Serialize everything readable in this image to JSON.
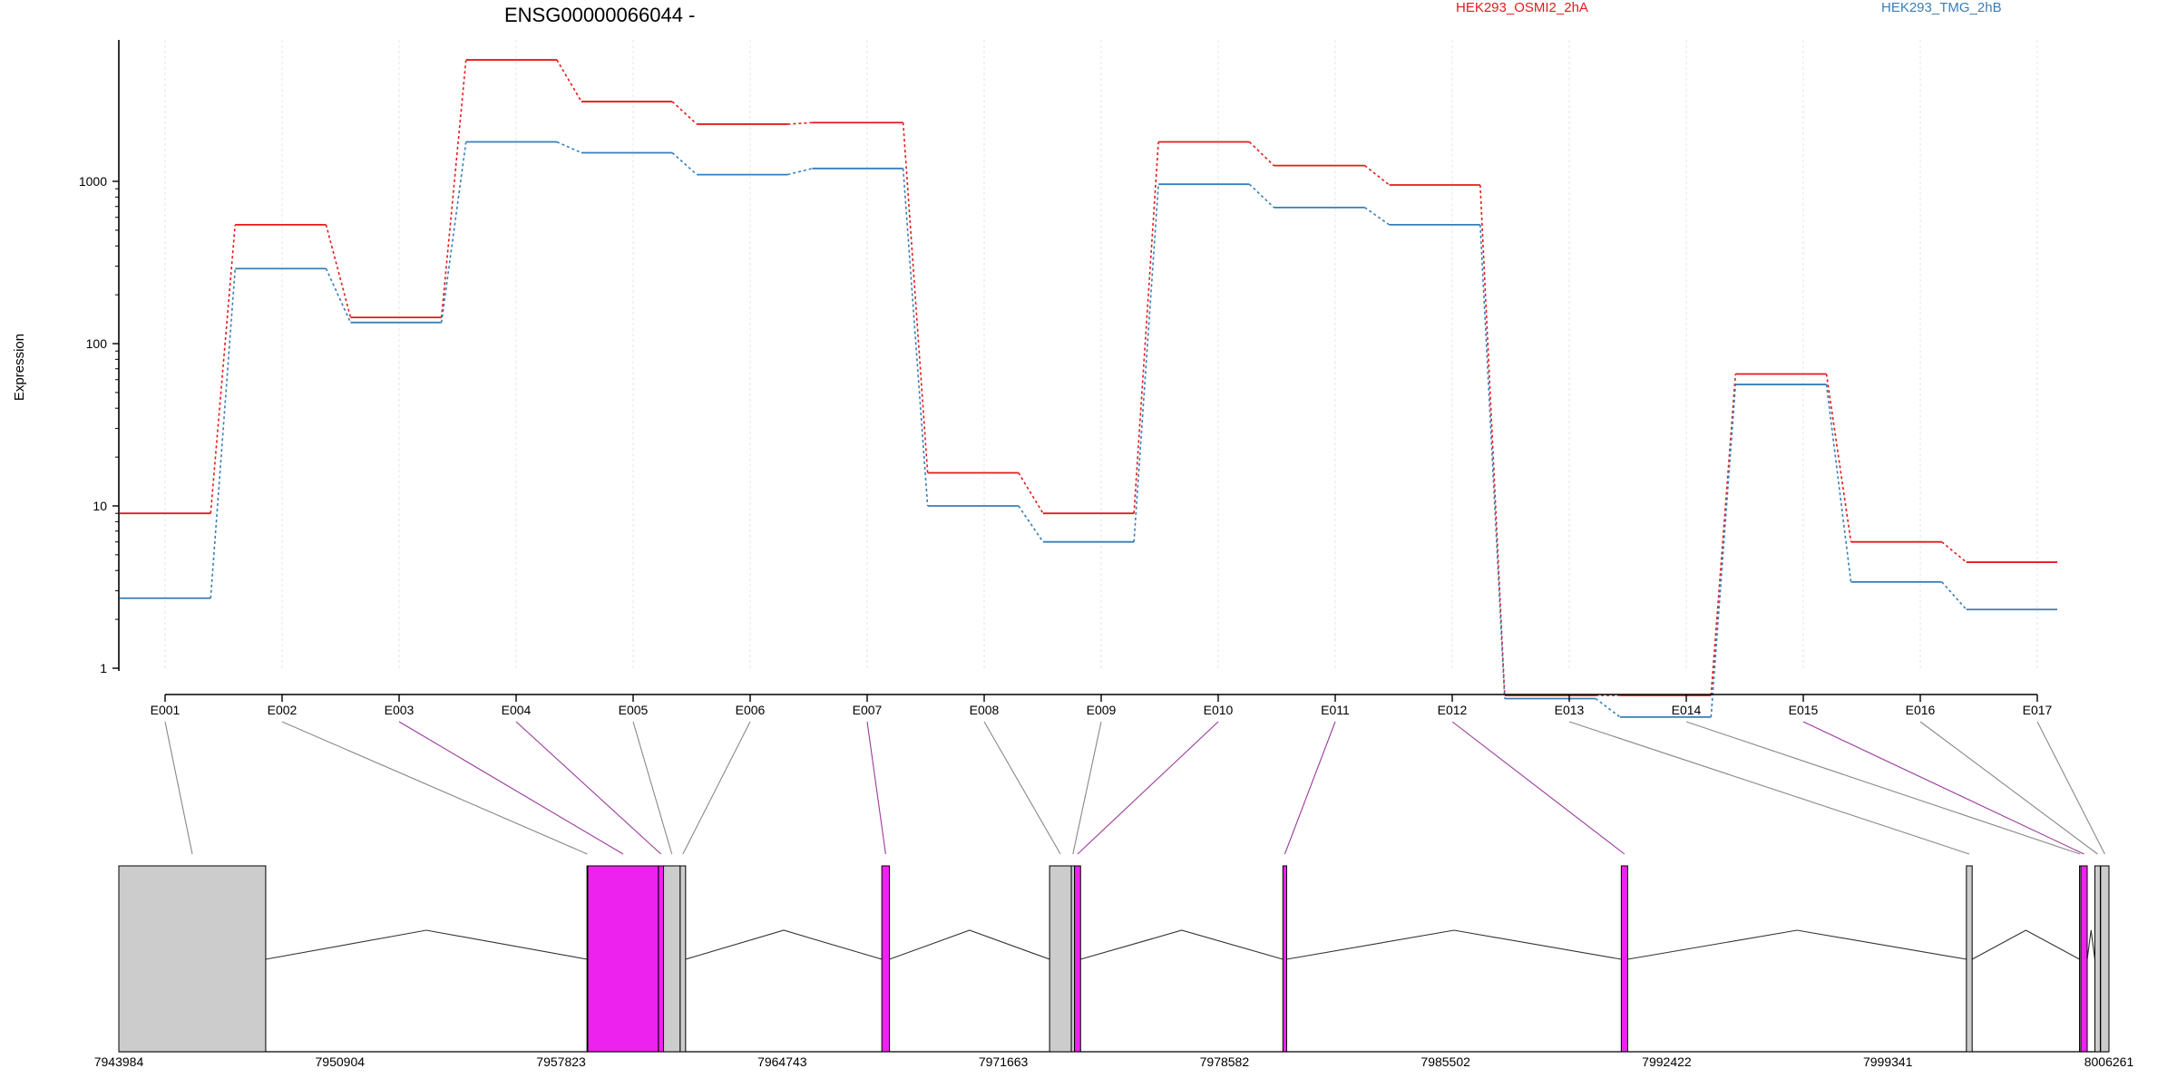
{
  "chart_data": {
    "type": "line",
    "title": "ENSG00000066044 -",
    "ylabel": "Expression",
    "xlabel": "",
    "yscale": "log",
    "ylim": [
      0.5,
      7000
    ],
    "yticks": [
      1,
      10,
      100,
      1000
    ],
    "ytick_labels": [
      "1",
      "10",
      "100",
      "1000"
    ],
    "grid": "vertical dotted",
    "legend_placement": "top-right",
    "categories": [
      "E001",
      "E002",
      "E003",
      "E004",
      "E005",
      "E006",
      "E007",
      "E008",
      "E009",
      "E010",
      "E011",
      "E012",
      "E013",
      "E014",
      "E015",
      "E016",
      "E017"
    ],
    "series": [
      {
        "name": "HEK293_OSMI2_2hA",
        "color": "#e41a1c",
        "values": [
          9,
          540,
          145,
          5600,
          3100,
          2250,
          2300,
          16,
          9,
          1750,
          1250,
          950,
          0.68,
          0.68,
          65,
          6,
          4.5
        ]
      },
      {
        "name": "HEK293_TMG_2hB",
        "color": "#377eb8",
        "values": [
          2.7,
          290,
          135,
          1750,
          1500,
          1100,
          1200,
          10,
          6,
          960,
          690,
          540,
          0.65,
          0.5,
          56,
          3.4,
          2.3
        ]
      }
    ],
    "gene_model": {
      "coord_labels": [
        "7943984",
        "7950904",
        "7957823",
        "7964743",
        "7971663",
        "7978582",
        "7985502",
        "7992422",
        "7999341",
        "8006261"
      ],
      "coord_range": [
        7943984,
        8006261
      ],
      "highlight_color": "#ee22ee",
      "exon_fill": "#cccccc",
      "exons": [
        {
          "id": "E001",
          "start": 7943984,
          "end": 7948580,
          "highlight": false
        },
        {
          "id": "E002",
          "start": 7958634,
          "end": 7958660,
          "highlight": false
        },
        {
          "id": "E003",
          "start": 7958660,
          "end": 7960870,
          "highlight": true
        },
        {
          "id": "E004",
          "start": 7960870,
          "end": 7961030,
          "highlight": true
        },
        {
          "id": "E005",
          "start": 7961030,
          "end": 7961550,
          "highlight": false
        },
        {
          "id": "E006",
          "start": 7961550,
          "end": 7961720,
          "highlight": false
        },
        {
          "id": "E007",
          "start": 7967860,
          "end": 7968100,
          "highlight": true
        },
        {
          "id": "E008",
          "start": 7973110,
          "end": 7973790,
          "highlight": false
        },
        {
          "id": "E009",
          "start": 7973790,
          "end": 7973890,
          "highlight": false
        },
        {
          "id": "E010",
          "start": 7973890,
          "end": 7974080,
          "highlight": true
        },
        {
          "id": "E011",
          "start": 7980410,
          "end": 7980530,
          "highlight": true
        },
        {
          "id": "E012",
          "start": 7991000,
          "end": 7991200,
          "highlight": true
        },
        {
          "id": "E013",
          "start": 8001800,
          "end": 8001980,
          "highlight": false
        },
        {
          "id": "E014",
          "start": 8005340,
          "end": 8005380,
          "highlight": false
        },
        {
          "id": "E015",
          "start": 8005380,
          "end": 8005580,
          "highlight": true
        },
        {
          "id": "E016",
          "start": 8005820,
          "end": 8005990,
          "highlight": false
        },
        {
          "id": "E017",
          "start": 8006000,
          "end": 8006261,
          "highlight": false
        }
      ]
    }
  }
}
